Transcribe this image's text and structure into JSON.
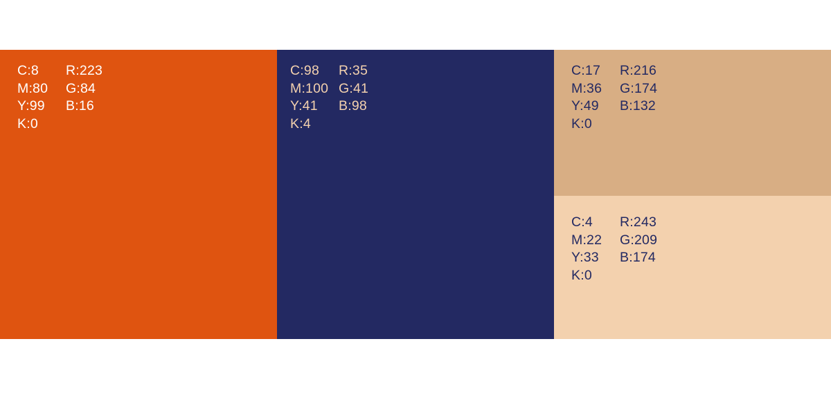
{
  "palette": {
    "swatches": [
      {
        "name": "orange",
        "hex": "#df5410",
        "text_color": "#ffffff",
        "cmyk": [
          "C:8",
          "M:80",
          "Y:99",
          "K:0"
        ],
        "rgb": [
          "R:223",
          "G:84",
          "B:16"
        ]
      },
      {
        "name": "navy",
        "hex": "#232962",
        "text_color": "#f3d1ae",
        "cmyk": [
          "C:98",
          "M:100",
          "Y:41",
          "K:4"
        ],
        "rgb": [
          "R:35",
          "G:41",
          "B:98"
        ]
      },
      {
        "name": "tan",
        "hex": "#d8ae84",
        "text_color": "#232962",
        "cmyk": [
          "C:17",
          "M:36",
          "Y:49",
          "K:0"
        ],
        "rgb": [
          "R:216",
          "G:174",
          "B:132"
        ]
      },
      {
        "name": "peach",
        "hex": "#f3d1ae",
        "text_color": "#232962",
        "cmyk": [
          "C:4",
          "M:22",
          "Y:33",
          "K:0"
        ],
        "rgb": [
          "R:243",
          "G:209",
          "B:174"
        ]
      }
    ]
  }
}
